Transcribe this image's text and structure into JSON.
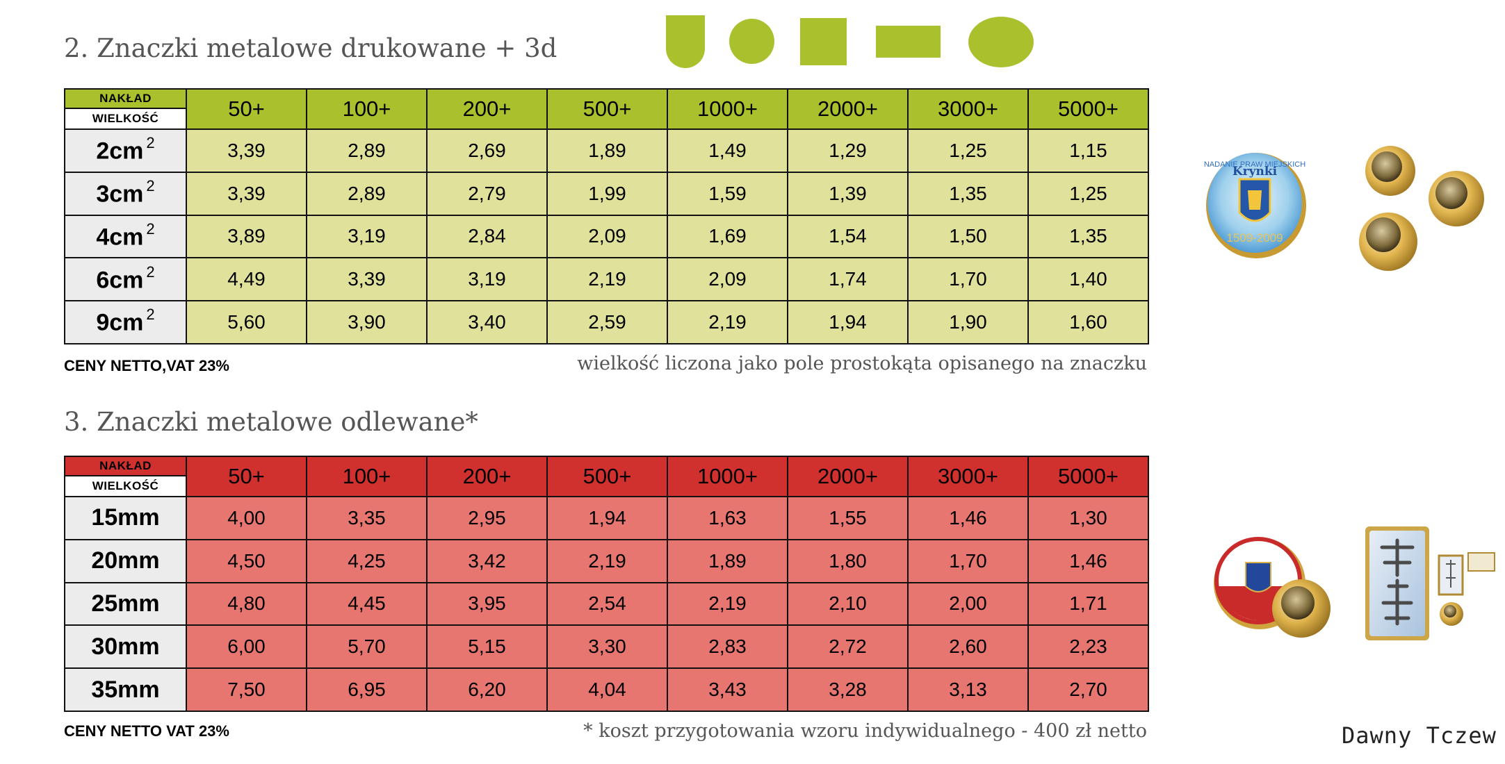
{
  "section1": {
    "title": "2. Znaczki metalowe drukowane + 3d",
    "header_label_top": "NAKŁAD",
    "header_label_bottom": "WIELKOŚĆ",
    "quantities": [
      "50+",
      "100+",
      "200+",
      "500+",
      "1000+",
      "2000+",
      "3000+",
      "5000+"
    ],
    "rows": [
      {
        "size": "2cm",
        "sup": "2",
        "prices": [
          "3,39",
          "2,89",
          "2,69",
          "1,89",
          "1,49",
          "1,29",
          "1,25",
          "1,15"
        ]
      },
      {
        "size": "3cm",
        "sup": "2",
        "prices": [
          "3,39",
          "2,89",
          "2,79",
          "1,99",
          "1,59",
          "1,39",
          "1,35",
          "1,25"
        ]
      },
      {
        "size": "4cm",
        "sup": "2",
        "prices": [
          "3,89",
          "3,19",
          "2,84",
          "2,09",
          "1,69",
          "1,54",
          "1,50",
          "1,35"
        ]
      },
      {
        "size": "6cm",
        "sup": "2",
        "prices": [
          "4,49",
          "3,39",
          "3,19",
          "2,19",
          "2,09",
          "1,74",
          "1,70",
          "1,40"
        ]
      },
      {
        "size": "9cm",
        "sup": "2",
        "prices": [
          "5,60",
          "3,90",
          "3,40",
          "2,59",
          "2,19",
          "1,94",
          "1,90",
          "1,60"
        ]
      }
    ],
    "note_left": "CENY NETTO,VAT 23%",
    "note_right": "wielkość liczona jako pole prostokąta opisanego na znaczku",
    "header_color": "#aac12d",
    "cell_color": "#e0e19a"
  },
  "section2": {
    "title": "3. Znaczki metalowe odlewane*",
    "header_label_top": "NAKŁAD",
    "header_label_bottom": "WIELKOŚĆ",
    "quantities": [
      "50+",
      "100+",
      "200+",
      "500+",
      "1000+",
      "2000+",
      "3000+",
      "5000+"
    ],
    "rows": [
      {
        "size": "15mm",
        "prices": [
          "4,00",
          "3,35",
          "2,95",
          "1,94",
          "1,63",
          "1,55",
          "1,46",
          "1,30"
        ]
      },
      {
        "size": "20mm",
        "prices": [
          "4,50",
          "4,25",
          "3,42",
          "2,19",
          "1,89",
          "1,80",
          "1,70",
          "1,46"
        ]
      },
      {
        "size": "25mm",
        "prices": [
          "4,80",
          "4,45",
          "3,95",
          "2,54",
          "2,19",
          "2,10",
          "2,00",
          "1,71"
        ]
      },
      {
        "size": "30mm",
        "prices": [
          "6,00",
          "5,70",
          "5,15",
          "3,30",
          "2,83",
          "2,72",
          "2,60",
          "2,23"
        ]
      },
      {
        "size": "35mm",
        "prices": [
          "7,50",
          "6,95",
          "6,20",
          "4,04",
          "3,43",
          "3,28",
          "3,13",
          "2,70"
        ]
      }
    ],
    "note_left": "CENY NETTO VAT 23%",
    "note_right": "* koszt przygotowania wzoru indywidualnego - 400 zł netto",
    "header_color": "#d0312e",
    "cell_color": "#e77670"
  },
  "pin_photo_1": {
    "badge_text_top": "Krynki",
    "badge_text_ring": "NADANIE PRAW MIEJSKICH",
    "badge_years": "1509-2009"
  },
  "signature": "Dawny Tczew",
  "shape_color": "#aac12d"
}
